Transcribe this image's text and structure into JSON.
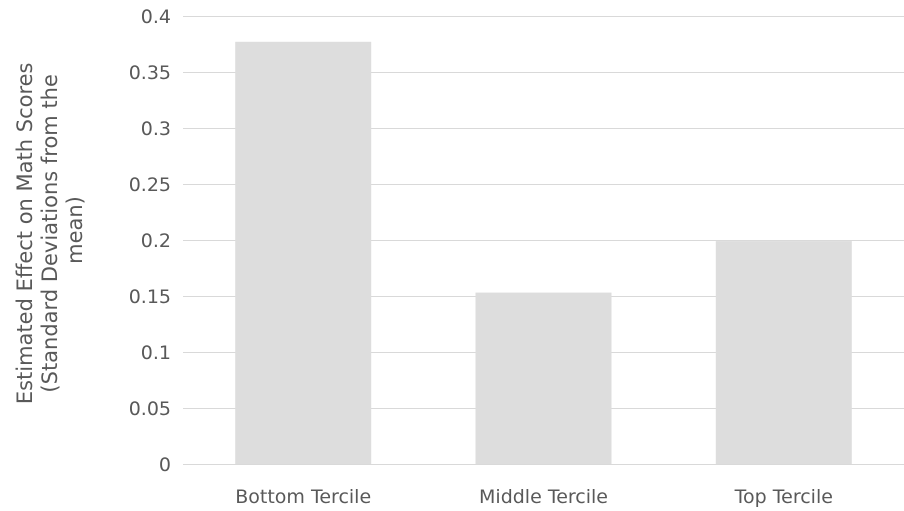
{
  "chart_data": {
    "type": "bar",
    "title": "",
    "xlabel": "",
    "ylabel_lines": [
      "Estimated Effect on Math Scores",
      "(Standard Deviations from the",
      "mean)"
    ],
    "categories": [
      "Bottom Tercile",
      "Middle Tercile",
      "Top Tercile"
    ],
    "values": [
      0.377,
      0.153,
      0.199
    ],
    "ylim": [
      0,
      0.4
    ],
    "yticks": [
      "0",
      "0.05",
      "0.1",
      "0.15",
      "0.2",
      "0.25",
      "0.3",
      "0.35",
      "0.4"
    ],
    "grid": true,
    "legend": "none",
    "bar_color": "#dddddd",
    "grid_color": "#d9d9d9",
    "text_color": "#595959"
  }
}
